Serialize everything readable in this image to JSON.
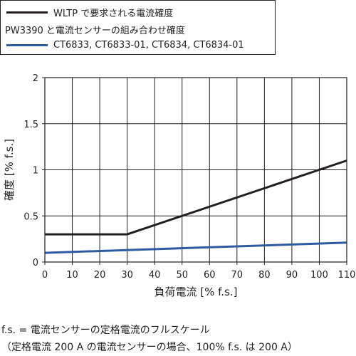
{
  "legend": {
    "items": [
      {
        "label": "WLTP で要求される電流確度",
        "color": "#231f20",
        "swatch": true
      },
      {
        "label": "PW3390 と電流センサーの組み合わせ確度",
        "color": "#231f20",
        "swatch": false
      },
      {
        "label": "CT6833, CT6833-01, CT6834, CT6834-01",
        "color": "#2e5aa0",
        "swatch": true
      }
    ]
  },
  "chart_data": {
    "type": "line",
    "xlabel": "負荷電流 [% f.s.]",
    "ylabel": "確度 [% f.s.]",
    "xlim": [
      0,
      110
    ],
    "ylim": [
      0,
      2
    ],
    "x_ticks": [
      0,
      10,
      20,
      30,
      40,
      50,
      60,
      70,
      80,
      90,
      100,
      110
    ],
    "y_ticks": [
      0,
      0.5,
      1,
      1.5,
      2
    ],
    "y_tick_labels": [
      "0",
      "0.5",
      "1",
      "1.5",
      "2"
    ],
    "grid": true,
    "series": [
      {
        "name": "WLTP で要求される電流確度",
        "color": "#231f20",
        "points": [
          [
            0,
            0.3
          ],
          [
            30,
            0.3
          ],
          [
            110,
            1.1
          ]
        ]
      },
      {
        "name": "CT6833, CT6833-01, CT6834, CT6834-01",
        "color": "#2e5aa0",
        "points": [
          [
            0,
            0.1
          ],
          [
            110,
            0.21
          ]
        ]
      }
    ]
  },
  "footnote": {
    "line1": "f.s. = 電流センサーの定格電流のフルスケール",
    "line2": "（定格電流 200 A の電流センサーの場合、100% f.s. は 200 A）"
  }
}
